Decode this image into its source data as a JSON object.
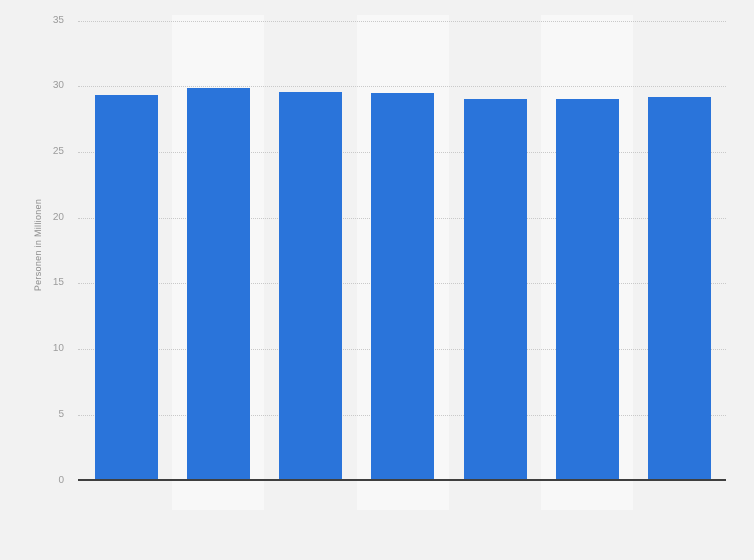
{
  "chart_data": {
    "type": "bar",
    "title": "",
    "ylabel": "Personen in Millionen",
    "xlabel": "",
    "values": [
      29.3,
      29.9,
      29.6,
      29.5,
      29.0,
      29.0,
      29.2
    ],
    "yticks": [
      0,
      5,
      10,
      15,
      20,
      25,
      30,
      35
    ],
    "ylim": [
      0,
      35
    ],
    "grid": "horizontal-dotted",
    "legend_position": "none",
    "x_tick_labels_visible": false
  },
  "colors": {
    "page_background": "#f2f2f2",
    "column_band": "#f8f8f8",
    "bar_fill": "#2a74da",
    "axis_line": "#3f3f3f",
    "gridline": "#c9c9c9",
    "tick_label": "#9b9b9b",
    "axis_title": "#8c8c8c"
  }
}
